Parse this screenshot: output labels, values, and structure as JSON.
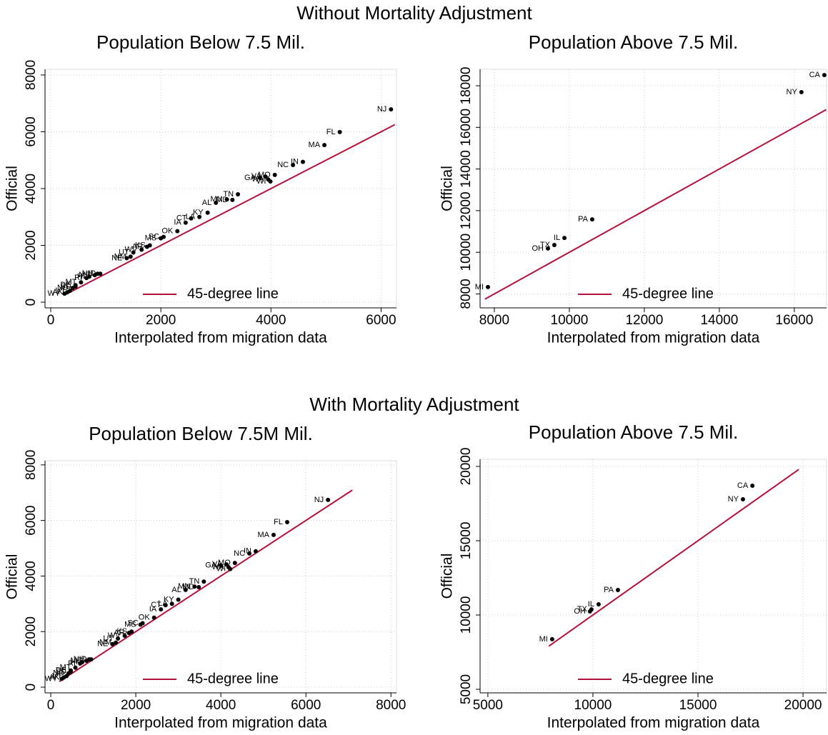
{
  "section_titles": [
    "Without Mortality Adjustment",
    "With Mortality Adjustment"
  ],
  "chart_data": [
    {
      "type": "scatter",
      "title": "Population Below 7.5 Mil.",
      "x_label": "Interpolated from migration data",
      "y_label": "Official",
      "xlim": [
        -104,
        6280
      ],
      "ylim": [
        -200,
        8200
      ],
      "xticks": [
        0,
        2000,
        4000,
        6000
      ],
      "yticks": [
        0,
        2000,
        4000,
        6000,
        8000
      ],
      "grid": true,
      "color": "#000000",
      "point_labels": [
        "NJ",
        "FL",
        "MA",
        "NC",
        "IN",
        "GA",
        "VA",
        "MO",
        "WA",
        "WI",
        "TN",
        "MN",
        "MD",
        "AL",
        "KY",
        "CT",
        "LA",
        "IA",
        "OK",
        "SC",
        "MS",
        "KS",
        "AR",
        "WV",
        "UT",
        "NE",
        "NM",
        "ID",
        "NH",
        "ME",
        "HI",
        "RI",
        "MT",
        "DE",
        "SD",
        "ND",
        "AK",
        "VT",
        "WY"
      ],
      "x": [
        6180,
        5250,
        4970,
        4400,
        4580,
        3800,
        3900,
        4070,
        3950,
        3990,
        3400,
        3200,
        3300,
        3000,
        2850,
        2550,
        2700,
        2450,
        2300,
        2050,
        2000,
        1800,
        1750,
        1650,
        1500,
        1380,
        1450,
        900,
        850,
        800,
        700,
        650,
        550,
        450,
        450,
        400,
        300,
        350,
        250
      ],
      "values": [
        6790,
        5990,
        5530,
        4830,
        4940,
        4380,
        4420,
        4480,
        4320,
        4250,
        3800,
        3620,
        3600,
        3500,
        3150,
        2950,
        3000,
        2800,
        2500,
        2300,
        2250,
        2000,
        1950,
        1850,
        1750,
        1550,
        1600,
        1000,
        1000,
        950,
        900,
        850,
        700,
        600,
        550,
        500,
        350,
        400,
        300
      ],
      "reference_line": {
        "name": "45-degree line",
        "color": "#b5123b",
        "x": [
          250,
          6250
        ],
        "values": [
          250,
          6250
        ]
      }
    },
    {
      "type": "scatter",
      "title": "Population Above 7.5 Mil.",
      "x_label": "Interpolated from migration data",
      "y_label": "Official",
      "xlim": [
        7620,
        16860
      ],
      "ylim": [
        7330,
        18790
      ],
      "xticks": [
        8000,
        10000,
        12000,
        14000,
        16000
      ],
      "yticks": [
        8000,
        10000,
        12000,
        14000,
        16000,
        18000
      ],
      "grid": true,
      "color": "#000000",
      "point_labels": [
        "CA",
        "NY",
        "PA",
        "IL",
        "TX",
        "OH",
        "MI"
      ],
      "x": [
        16800,
        16190,
        10610,
        9870,
        9600,
        9430,
        7830
      ],
      "values": [
        18510,
        17690,
        11580,
        10690,
        10350,
        10180,
        8330
      ],
      "reference_line": {
        "name": "45-degree line",
        "color": "#b5123b",
        "x": [
          7750,
          16850
        ],
        "values": [
          7750,
          16850
        ]
      }
    },
    {
      "type": "scatter",
      "title": "Population Below 7.5M Mil.",
      "x_label": "Interpolated from migration data",
      "y_label": "Official",
      "xlim": [
        -135,
        8130
      ],
      "ylim": [
        -205,
        8150
      ],
      "xticks": [
        0,
        2000,
        4000,
        6000,
        8000
      ],
      "yticks": [
        0,
        2000,
        4000,
        6000,
        8000
      ],
      "grid": true,
      "color": "#000000",
      "point_labels": [
        "NJ",
        "FL",
        "MA",
        "NC",
        "IN",
        "GA",
        "VA",
        "MO",
        "WA",
        "WI",
        "TN",
        "MN",
        "MD",
        "AL",
        "KY",
        "CT",
        "LA",
        "IA",
        "OK",
        "SC",
        "MS",
        "KS",
        "AR",
        "WV",
        "UT",
        "NE",
        "NM",
        "ID",
        "NH",
        "ME",
        "HI",
        "RI",
        "MT",
        "DE",
        "SD",
        "ND",
        "AK",
        "VT",
        "WY"
      ],
      "x": [
        6520,
        5560,
        5240,
        4670,
        4820,
        4000,
        4130,
        4330,
        4180,
        4220,
        3600,
        3380,
        3480,
        3170,
        3000,
        2700,
        2850,
        2590,
        2430,
        2160,
        2110,
        1900,
        1840,
        1740,
        1580,
        1450,
        1530,
        950,
        900,
        840,
        740,
        690,
        580,
        470,
        470,
        420,
        310,
        370,
        260
      ],
      "values": [
        6740,
        5940,
        5480,
        4810,
        4890,
        4380,
        4420,
        4470,
        4320,
        4250,
        3800,
        3620,
        3600,
        3500,
        3150,
        2950,
        3000,
        2800,
        2500,
        2300,
        2250,
        2000,
        1950,
        1850,
        1750,
        1550,
        1600,
        1000,
        1000,
        950,
        900,
        850,
        700,
        600,
        550,
        500,
        350,
        400,
        300
      ],
      "reference_line": {
        "name": "45-degree line",
        "color": "#b5123b",
        "x": [
          200,
          7090
        ],
        "values": [
          200,
          7090
        ]
      }
    },
    {
      "type": "scatter",
      "title": "Population Above 7.5 Mil.",
      "x_label": "Interpolated from migration data",
      "y_label": "Official",
      "xlim": [
        4630,
        21120
      ],
      "ylim": [
        4760,
        20480
      ],
      "xticks": [
        5000,
        10000,
        15000,
        20000
      ],
      "yticks": [
        5000,
        10000,
        15000,
        20000
      ],
      "grid": true,
      "color": "#000000",
      "point_labels": [
        "CA",
        "NY",
        "PA",
        "IL",
        "TX",
        "OH",
        "MI"
      ],
      "x": [
        17590,
        17140,
        11190,
        10270,
        9930,
        9860,
        8060
      ],
      "values": [
        18700,
        17790,
        11680,
        10720,
        10380,
        10240,
        8370
      ],
      "reference_line": {
        "name": "45-degree line",
        "color": "#b5123b",
        "x": [
          7900,
          19800
        ],
        "values": [
          7900,
          19800
        ]
      }
    }
  ]
}
